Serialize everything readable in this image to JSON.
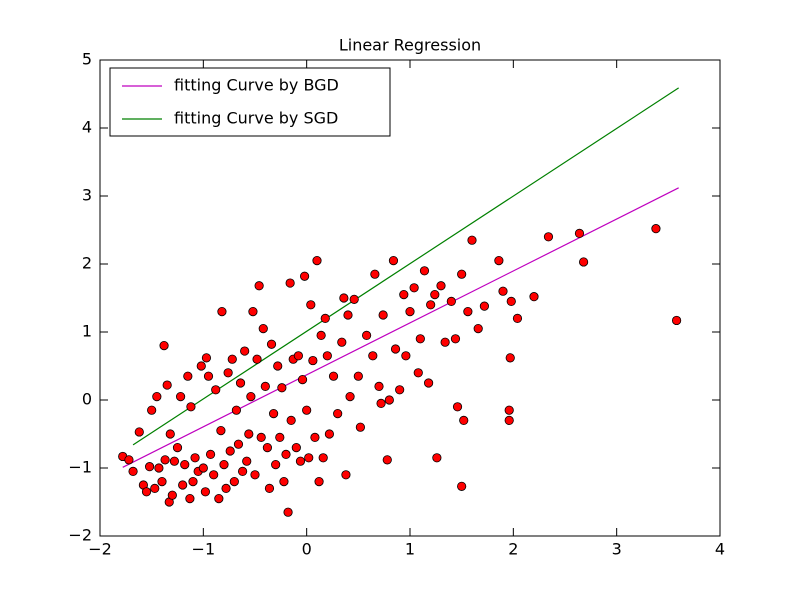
{
  "chart_data": {
    "type": "scatter",
    "title": "Linear Regression",
    "xlim": [
      -2,
      4
    ],
    "ylim": [
      -2,
      5
    ],
    "xticks": [
      {
        "value": -2,
        "label": "−2"
      },
      {
        "value": -1,
        "label": "−1"
      },
      0,
      1,
      2,
      3,
      4
    ],
    "yticks": [
      {
        "value": -2,
        "label": "−2"
      },
      {
        "value": -1,
        "label": "−1"
      },
      0,
      1,
      2,
      3,
      4,
      5
    ],
    "legend": "upper left",
    "series": [
      {
        "name": "fitting Curve by BGD",
        "type": "line",
        "color": "#bf00bf",
        "x": [
          -1.78,
          3.6
        ],
        "y": [
          -0.99,
          3.12
        ]
      },
      {
        "name": "fitting Curve by SGD",
        "type": "line",
        "color": "#008000",
        "x": [
          -1.68,
          3.6
        ],
        "y": [
          -0.66,
          4.59
        ]
      },
      {
        "type": "scatter",
        "color": "#ff0000",
        "x": [
          -1.78,
          -1.72,
          -1.68,
          -1.62,
          -1.58,
          -1.55,
          -1.52,
          -1.5,
          -1.47,
          -1.45,
          -1.43,
          -1.4,
          -1.38,
          -1.37,
          -1.35,
          -1.33,
          -1.32,
          -1.3,
          -1.28,
          -1.25,
          -1.22,
          -1.2,
          -1.18,
          -1.15,
          -1.13,
          -1.12,
          -1.1,
          -1.08,
          -1.05,
          -1.02,
          -1.0,
          -0.98,
          -0.97,
          -0.95,
          -0.93,
          -0.9,
          -0.88,
          -0.85,
          -0.83,
          -0.82,
          -0.8,
          -0.78,
          -0.76,
          -0.74,
          -0.72,
          -0.7,
          -0.68,
          -0.66,
          -0.64,
          -0.62,
          -0.6,
          -0.58,
          -0.56,
          -0.54,
          -0.52,
          -0.5,
          -0.48,
          -0.46,
          -0.44,
          -0.42,
          -0.4,
          -0.38,
          -0.36,
          -0.34,
          -0.32,
          -0.3,
          -0.28,
          -0.26,
          -0.24,
          -0.22,
          -0.2,
          -0.18,
          -0.16,
          -0.15,
          -0.13,
          -0.1,
          -0.08,
          -0.06,
          -0.04,
          -0.02,
          0.0,
          0.02,
          0.04,
          0.06,
          0.08,
          0.1,
          0.12,
          0.14,
          0.16,
          0.18,
          0.2,
          0.22,
          0.26,
          0.3,
          0.34,
          0.36,
          0.38,
          0.4,
          0.42,
          0.46,
          0.5,
          0.52,
          0.58,
          0.64,
          0.66,
          0.7,
          0.72,
          0.74,
          0.78,
          0.8,
          0.84,
          0.86,
          0.9,
          0.94,
          0.96,
          1.0,
          1.04,
          1.08,
          1.14,
          1.18,
          1.24,
          1.26,
          1.3,
          1.34,
          1.4,
          1.44,
          1.46,
          1.5,
          1.52,
          1.5,
          1.56,
          1.6,
          1.66,
          1.72,
          1.86,
          1.9,
          1.96,
          1.98,
          2.04,
          2.2,
          2.34,
          2.64,
          2.68,
          3.38,
          3.58,
          1.97,
          1.96,
          1.1,
          1.2
        ],
        "y": [
          -0.83,
          -0.88,
          -1.05,
          -0.47,
          -1.25,
          -1.35,
          -0.98,
          -0.15,
          -1.3,
          0.05,
          -1.0,
          -1.2,
          0.8,
          -0.88,
          0.22,
          -1.5,
          -0.5,
          -1.4,
          -0.9,
          -0.7,
          0.05,
          -1.25,
          -0.95,
          0.35,
          -1.45,
          -0.1,
          -1.2,
          -0.85,
          -1.05,
          0.5,
          -1.0,
          -1.35,
          0.62,
          0.35,
          -0.8,
          -1.1,
          0.15,
          -1.45,
          -0.45,
          1.3,
          -0.95,
          -1.3,
          0.4,
          -0.75,
          0.6,
          -1.2,
          -0.15,
          -0.65,
          0.25,
          -1.05,
          0.72,
          -0.9,
          -0.5,
          0.05,
          1.3,
          -1.1,
          0.6,
          1.68,
          -0.55,
          1.05,
          0.2,
          -0.7,
          -1.3,
          0.82,
          -0.2,
          -0.95,
          0.5,
          -0.55,
          0.18,
          -1.2,
          -0.8,
          -1.65,
          1.72,
          -0.3,
          0.6,
          -0.7,
          0.65,
          -0.9,
          0.3,
          1.82,
          -0.15,
          -0.85,
          1.4,
          0.58,
          -0.55,
          2.05,
          -1.2,
          0.95,
          -0.85,
          1.2,
          0.65,
          -0.5,
          0.35,
          -0.2,
          0.85,
          1.5,
          -1.1,
          1.25,
          0.05,
          1.48,
          0.35,
          -0.4,
          0.95,
          0.65,
          1.85,
          0.2,
          -0.05,
          1.25,
          -0.88,
          0.0,
          2.05,
          0.75,
          0.15,
          1.55,
          0.65,
          1.3,
          1.65,
          0.4,
          1.9,
          0.25,
          1.55,
          -0.85,
          1.68,
          0.85,
          1.45,
          0.9,
          -0.1,
          1.85,
          -0.3,
          -1.27,
          1.3,
          2.35,
          1.05,
          1.38,
          2.05,
          1.6,
          -0.15,
          1.45,
          1.2,
          1.52,
          2.4,
          2.45,
          2.03,
          2.52,
          1.17,
          0.62,
          -0.3,
          0.9,
          1.4
        ]
      }
    ]
  }
}
